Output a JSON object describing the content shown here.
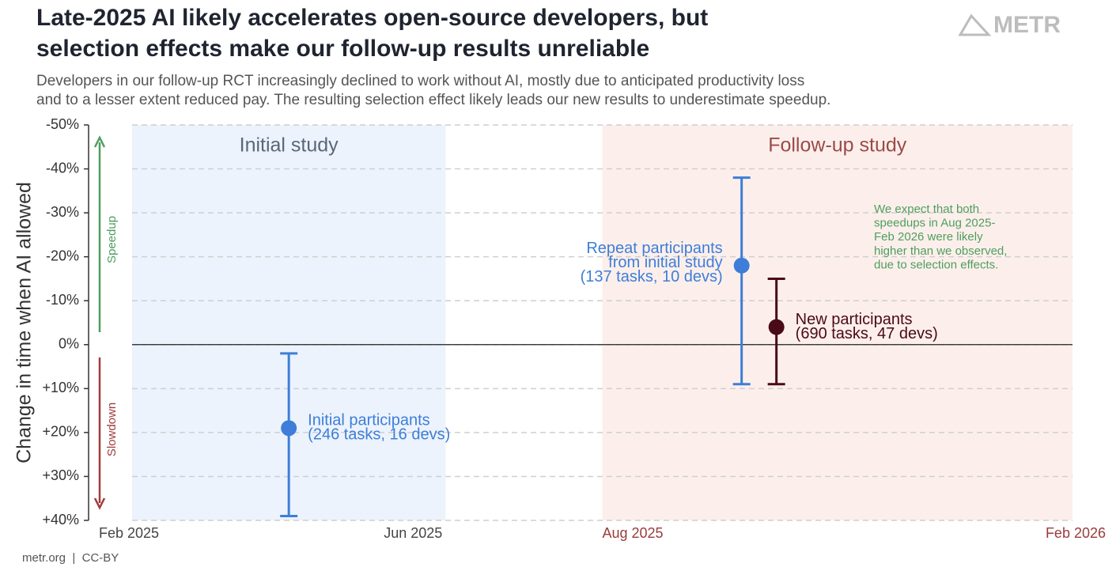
{
  "chart_data": {
    "type": "errorbar",
    "title": [
      "Late-2025 AI likely accelerates open-source developers, but",
      "selection effects make our follow-up results unreliable"
    ],
    "subtitle": [
      "Developers in our follow-up RCT increasingly declined to work without AI, mostly due to anticipated productivity loss",
      "and to a lesser extent reduced pay. The resulting selection effect likely leads our new results to underestimate speedup."
    ],
    "logo": "METR",
    "footer": "metr.org  |  CC-BY",
    "y_label": "Change in time when AI allowed",
    "ylim": [
      -50,
      40
    ],
    "yticks": [
      {
        "value": -50,
        "label": "-50%"
      },
      {
        "value": -40,
        "label": "-40%"
      },
      {
        "value": -30,
        "label": "-30%"
      },
      {
        "value": -20,
        "label": "-20%"
      },
      {
        "value": -10,
        "label": "-10%"
      },
      {
        "value": 0,
        "label": "0%"
      },
      {
        "value": 10,
        "label": "+10%"
      },
      {
        "value": 20,
        "label": "+20%"
      },
      {
        "value": 30,
        "label": "+30%"
      },
      {
        "value": 40,
        "label": "+40%"
      }
    ],
    "xlim": [
      "2025-02",
      "2026-02"
    ],
    "xticks": [
      {
        "value": "2025-02",
        "label": "Feb 2025",
        "color": "#444444"
      },
      {
        "value": "2025-06",
        "label": "Jun 2025",
        "color": "#444444"
      },
      {
        "value": "2025-08",
        "label": "Aug 2025",
        "color": "#9b3b3b"
      },
      {
        "value": "2026-02",
        "label": "Feb 2026",
        "color": "#9b3b3b"
      }
    ],
    "grid": true,
    "regions": [
      {
        "name": "Initial study",
        "start": "2025-02",
        "end": "2025-06",
        "color": "#ecf3fd",
        "label_color": "#5a6778"
      },
      {
        "name": "Follow-up study",
        "start": "2025-08",
        "end": "2026-02",
        "color": "#fcefeb",
        "label_color": "#9b4a48"
      }
    ],
    "direction_labels": {
      "speedup": "Speedup",
      "slowdown": "Slowdown"
    },
    "annotation": [
      "We expect that both",
      "speedups in Aug 2025-",
      "Feb 2026 were likely",
      "higher than we observed,",
      "due to selection effects."
    ],
    "series": [
      {
        "name": [
          "Initial participants",
          "(246 tasks, 16 devs)"
        ],
        "color": "#3e7ed8",
        "x": [
          "2025-04"
        ],
        "values": [
          19
        ],
        "ci": [
          2,
          39
        ]
      },
      {
        "name": [
          "Repeat participants",
          "from initial study",
          "(137 tasks, 10 devs)"
        ],
        "color": "#3e7ed8",
        "x": [
          "2025-10"
        ],
        "values": [
          -18
        ],
        "ci": [
          -38,
          9
        ]
      },
      {
        "name": [
          "New participants",
          "(690 tasks, 47 devs)"
        ],
        "color": "#4a0a16",
        "x": [
          "2025-10"
        ],
        "values": [
          -4
        ],
        "ci": [
          -15,
          9
        ]
      }
    ]
  }
}
